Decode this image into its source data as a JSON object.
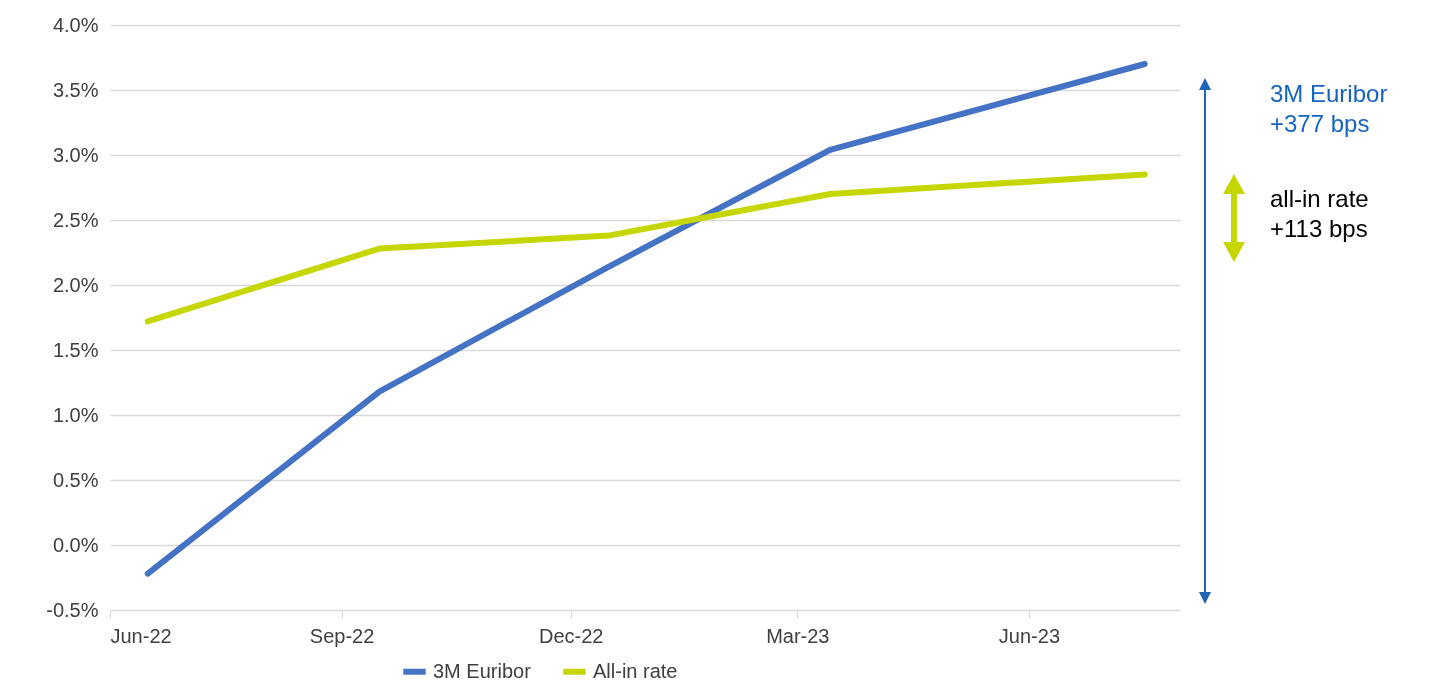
{
  "chart_data": {
    "type": "line",
    "x": [
      "2022-06-16",
      "2022-09-16",
      "2022-12-16",
      "2023-03-14",
      "2023-07-17"
    ],
    "series": [
      {
        "name": "3M Euribor",
        "color": "#4472c4",
        "values": [
          -0.22,
          1.18,
          2.14,
          3.04,
          3.7
        ]
      },
      {
        "name": "All-in rate",
        "color": "#c5d600",
        "values": [
          1.72,
          2.28,
          2.38,
          2.7,
          2.85
        ]
      }
    ],
    "xlim": [
      "2022-06-01",
      "2023-07-31"
    ],
    "xticks": [
      {
        "value": "2022-06-01",
        "label": "Jun-22"
      },
      {
        "value": "2022-09-01",
        "label": "Sep-22"
      },
      {
        "value": "2022-12-01",
        "label": "Dec-22"
      },
      {
        "value": "2023-03-01",
        "label": "Mar-23"
      },
      {
        "value": "2023-06-01",
        "label": "Jun-23"
      }
    ],
    "ylim": [
      -0.5,
      4.0
    ],
    "yticks": [
      {
        "value": -0.5,
        "label": "-0.5%"
      },
      {
        "value": 0,
        "label": "0.0%"
      },
      {
        "value": 0.5,
        "label": "0.5%"
      },
      {
        "value": 1.0,
        "label": "1.0%"
      },
      {
        "value": 1.5,
        "label": "1.5%"
      },
      {
        "value": 2.0,
        "label": "2.0%"
      },
      {
        "value": 2.5,
        "label": "2.5%"
      },
      {
        "value": 3.0,
        "label": "3.0%"
      },
      {
        "value": 3.5,
        "label": "3.5%"
      },
      {
        "value": 4.0,
        "label": "4.0%"
      }
    ],
    "grid": "y",
    "legend": "bottom",
    "marker": "none",
    "line_style": "solid",
    "annotations": [
      "3M Euribor\n+377 bps",
      "all-in rate\n+113 bps"
    ]
  }
}
